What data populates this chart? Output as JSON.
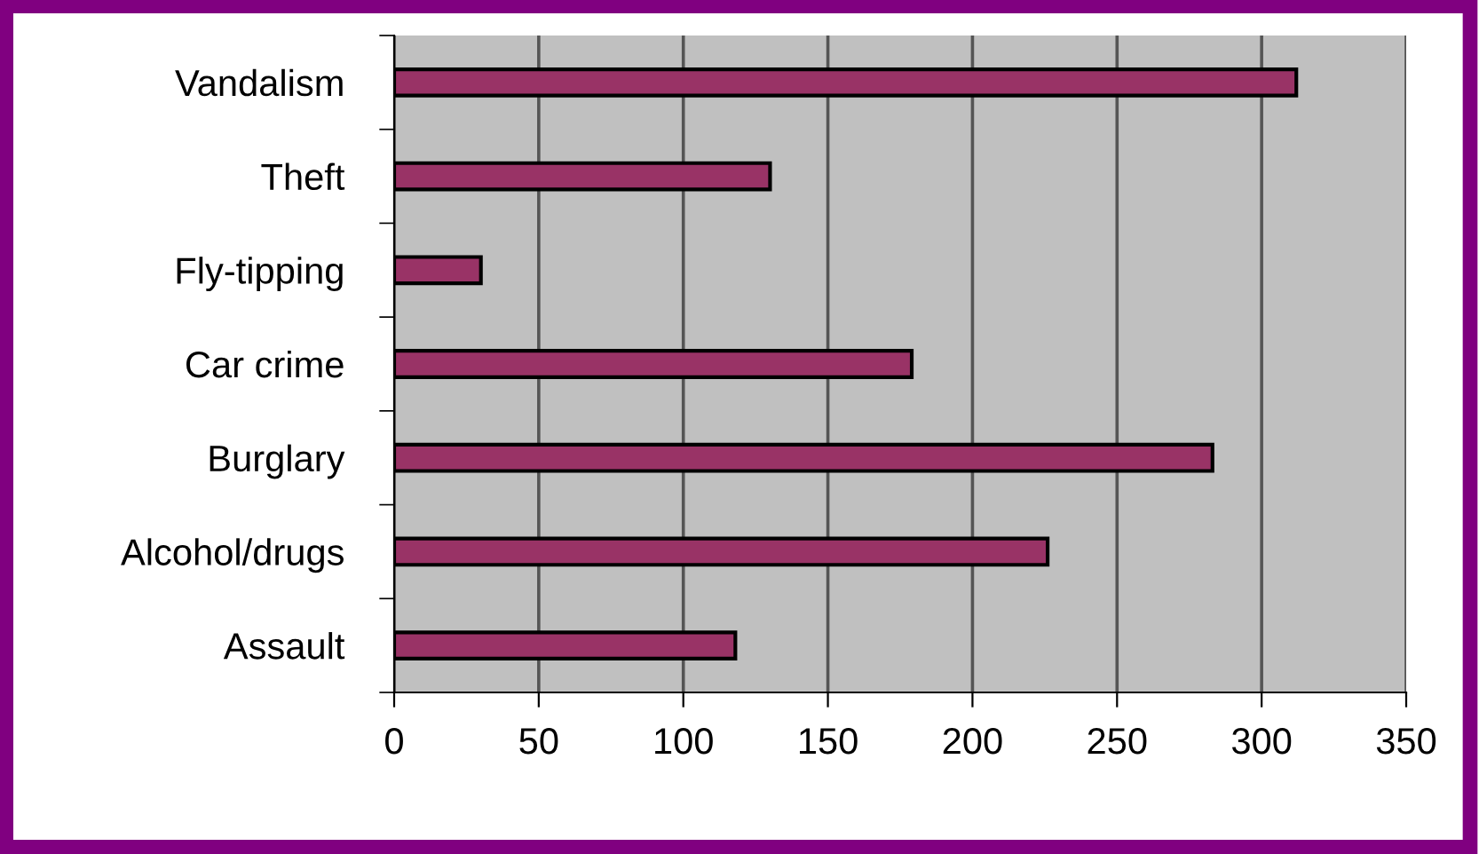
{
  "chart_data": {
    "type": "bar",
    "orientation": "horizontal",
    "categories": [
      "Vandalism",
      "Theft",
      "Fly-tipping",
      "Car crime",
      "Burglary",
      "Alcohol/drugs",
      "Assault"
    ],
    "values": [
      312,
      130,
      30,
      179,
      283,
      226,
      118
    ],
    "color": "#993366",
    "xlim": [
      0,
      350
    ],
    "xticks": [
      0,
      50,
      100,
      150,
      200,
      250,
      300,
      350
    ],
    "grid": "x",
    "legend": false
  }
}
